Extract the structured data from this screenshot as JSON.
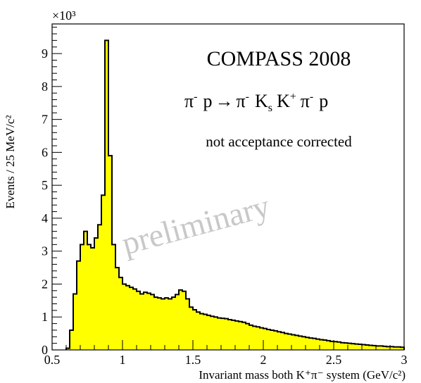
{
  "chart_data": {
    "type": "histogram",
    "title": "",
    "xlabel": "Invariant mass both K⁺π⁻ system (GeV/c²)",
    "ylabel": "Events / 25 MeV/c²",
    "y_multiplier": "×10³",
    "xlim": [
      0.5,
      3.0
    ],
    "ylim": [
      0,
      9.9
    ],
    "bin_width": 0.025,
    "x_ticks": [
      "0.5",
      "1",
      "1.5",
      "2",
      "2.5",
      "3"
    ],
    "y_ticks": [
      "0",
      "1",
      "2",
      "3",
      "4",
      "5",
      "6",
      "7",
      "8",
      "9"
    ],
    "annotations": {
      "experiment": "COMPASS 2008",
      "note": "not acceptance corrected",
      "watermark": "preliminary"
    },
    "reaction": {
      "pi": "π",
      "minus": "-",
      "plus": "+",
      "p": "p",
      "arrow": "→",
      "K": "K",
      "s": "s"
    },
    "fill_color": "#ffff00",
    "line_color": "#000000",
    "bins_low_edge_start": 0.6,
    "values": [
      0.05,
      0.6,
      1.7,
      2.7,
      3.2,
      3.6,
      3.2,
      3.1,
      3.4,
      3.8,
      4.7,
      9.4,
      5.9,
      3.2,
      2.5,
      2.2,
      2.0,
      1.95,
      1.9,
      1.85,
      1.78,
      1.7,
      1.75,
      1.72,
      1.68,
      1.6,
      1.58,
      1.55,
      1.58,
      1.55,
      1.6,
      1.68,
      1.82,
      1.78,
      1.55,
      1.3,
      1.22,
      1.15,
      1.1,
      1.08,
      1.05,
      1.02,
      1.0,
      0.97,
      0.96,
      0.95,
      0.92,
      0.9,
      0.88,
      0.86,
      0.84,
      0.8,
      0.75,
      0.72,
      0.7,
      0.67,
      0.65,
      0.62,
      0.6,
      0.58,
      0.55,
      0.53,
      0.5,
      0.48,
      0.46,
      0.44,
      0.42,
      0.4,
      0.38,
      0.36,
      0.35,
      0.33,
      0.31,
      0.3,
      0.28,
      0.26,
      0.25,
      0.24,
      0.22,
      0.21,
      0.2,
      0.19,
      0.18,
      0.17,
      0.16,
      0.15,
      0.14,
      0.13,
      0.12,
      0.12,
      0.11,
      0.1,
      0.1,
      0.09,
      0.09,
      0.08
    ]
  }
}
